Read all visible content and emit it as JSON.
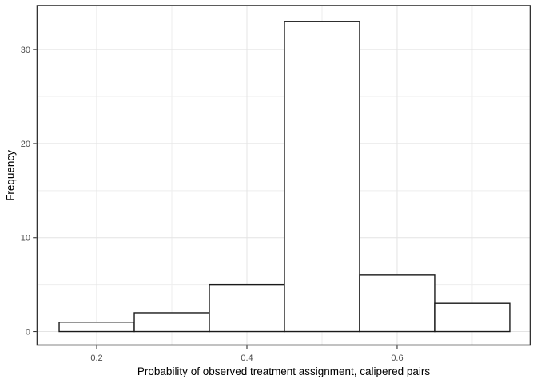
{
  "chart_data": {
    "type": "bar",
    "subtype": "histogram",
    "title": "",
    "xlabel": "Probability of observed treatment assignment, calipered pairs",
    "ylabel": "Frequency",
    "bin_edges": [
      0.15,
      0.25,
      0.35,
      0.45,
      0.55,
      0.65,
      0.75
    ],
    "counts": [
      1,
      2,
      5,
      33,
      6,
      3
    ],
    "x_ticks": [
      0.2,
      0.4,
      0.6
    ],
    "x_tick_labels": [
      "0.2",
      "0.4",
      "0.6"
    ],
    "x_minor_gridlines": [
      0.3,
      0.5,
      0.7
    ],
    "y_ticks": [
      0,
      10,
      20,
      30
    ],
    "y_tick_labels": [
      "0",
      "10",
      "20",
      "30"
    ],
    "y_minor_gridlines": [
      5,
      15,
      25
    ],
    "xlim": [
      0.1207,
      0.7772
    ],
    "ylim": [
      -1.44,
      34.68
    ],
    "grid": true,
    "legend": "none",
    "colors": {
      "background": "#ffffff",
      "panel_background": "#ffffff",
      "panel_border": "#333333",
      "grid_major": "#e4e4e4",
      "grid_minor": "#eeeeee",
      "bar_fill": "#ffffff",
      "bar_stroke": "#1a1a1a",
      "tick_mark": "#333333",
      "tick_label": "#4d4d4d",
      "axis_title": "#000000"
    }
  }
}
